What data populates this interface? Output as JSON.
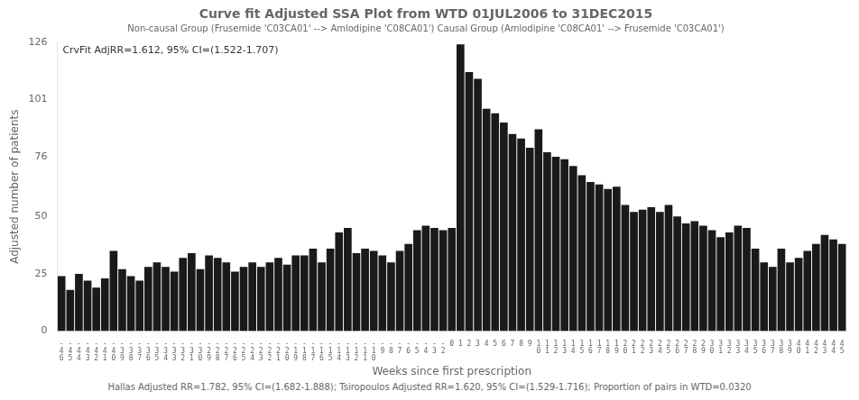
{
  "chart_data": {
    "type": "bar",
    "title": "Curve fit Adjusted SSA Plot from WTD 01JUL2006 to 31DEC2015",
    "subtitle": "Non-causal Group (Frusemide 'C03CA01' --> Amlodipine 'C08CA01') Causal Group (Amlodipine 'C08CA01' --> Frusemide 'C03CA01')",
    "ylabel": "Adjusted number of patients",
    "xlabel": "Weeks since first prescription",
    "annotation": "CrvFit AdjRR=1.612, 95% CI=(1.522-1.707)",
    "footer": "Hallas Adjusted RR=1.782, 95% CI=(1.682-1.888); Tsiropoulos Adjusted RR=1.620, 95% CI=(1.529-1.716); Proportion of pairs in WTD=0.0320",
    "categories": [
      "-46",
      "-45",
      "-44",
      "-43",
      "-42",
      "-41",
      "-40",
      "-39",
      "-38",
      "-37",
      "-36",
      "-35",
      "-34",
      "-33",
      "-32",
      "-31",
      "-30",
      "-29",
      "-28",
      "-27",
      "-26",
      "-25",
      "-24",
      "-23",
      "-22",
      "-21",
      "-20",
      "-19",
      "-18",
      "-17",
      "-16",
      "-15",
      "-14",
      "-13",
      "-12",
      "-11",
      "-10",
      "-9",
      "-8",
      "-7",
      "-6",
      "-5",
      "-4",
      "-3",
      "-2",
      "0",
      "1",
      "2",
      "3",
      "4",
      "5",
      "6",
      "7",
      "8",
      "9",
      "10",
      "11",
      "12",
      "13",
      "14",
      "15",
      "16",
      "17",
      "18",
      "19",
      "20",
      "21",
      "22",
      "23",
      "24",
      "25",
      "26",
      "27",
      "28",
      "29",
      "30",
      "31",
      "32",
      "33",
      "34",
      "35",
      "36",
      "37",
      "38",
      "39",
      "40",
      "41",
      "42",
      "43",
      "44",
      "45"
    ],
    "values": [
      24,
      18,
      25,
      22,
      19,
      23,
      35,
      27,
      24,
      22,
      28,
      30,
      28,
      26,
      32,
      34,
      27,
      33,
      32,
      30,
      26,
      28,
      30,
      28,
      30,
      32,
      29,
      33,
      33,
      36,
      30,
      36,
      43,
      45,
      34,
      36,
      35,
      33,
      30,
      35,
      38,
      44,
      46,
      45,
      44,
      45,
      125,
      113,
      110,
      97,
      95,
      91,
      86,
      84,
      80,
      88,
      78,
      76,
      75,
      72,
      68,
      65,
      64,
      62,
      63,
      55,
      52,
      53,
      54,
      52,
      55,
      50,
      47,
      48,
      46,
      44,
      41,
      43,
      46,
      45,
      36,
      30,
      28,
      36,
      30,
      32,
      35,
      38,
      42,
      40,
      38
    ],
    "color": "#1a1a1a",
    "ylim": [
      0,
      126
    ],
    "yticks": [
      0,
      25,
      50,
      76,
      101,
      126
    ],
    "grid": false
  }
}
